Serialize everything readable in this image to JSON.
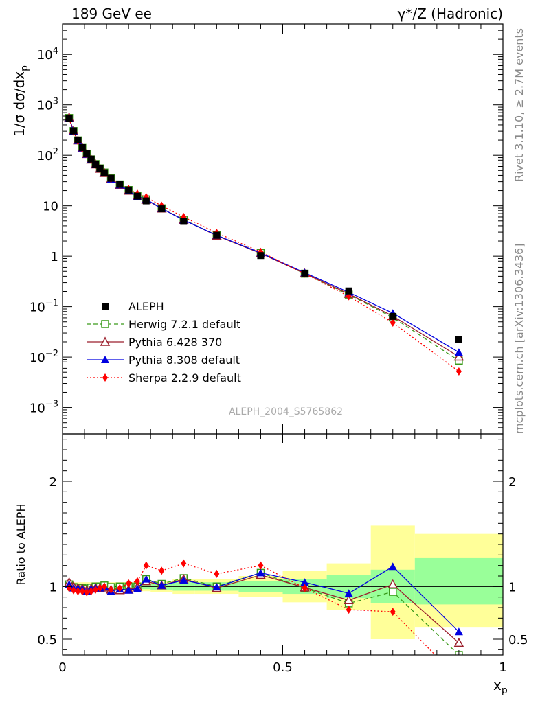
{
  "header": {
    "left_title": "189 GeV ee",
    "right_title": "γ*/Z (Hadronic)"
  },
  "side_text": {
    "rivet": "Rivet 3.1.10, ≥ 2.7M events",
    "mcplots": "mcplots.cern.ch [arXiv:1306.3436]"
  },
  "analysis_label": "ALEPH_2004_S5765862",
  "colors": {
    "data": "#000000",
    "herwig": "#3a9a1a",
    "pythia6": "#9b1f2c",
    "pythia8": "#0000e0",
    "sherpa": "#ff0000",
    "band_inner": "#99ff99",
    "band_outer": "#ffff99"
  },
  "chart_data": [
    {
      "type": "scatter",
      "panel": "main",
      "ylabel": "1/σ dσ/dx",
      "ylabel_sub": "p",
      "yscale": "log",
      "xlim": [
        0,
        1
      ],
      "ylim": [
        0.0003,
        40000
      ],
      "y_ticks": [
        {
          "v": 0.001,
          "base": "10",
          "exp": "−3"
        },
        {
          "v": 0.01,
          "base": "10",
          "exp": "−2"
        },
        {
          "v": 0.1,
          "base": "10",
          "exp": "−1"
        },
        {
          "v": 1,
          "base": "1",
          "exp": ""
        },
        {
          "v": 10,
          "base": "10",
          "exp": ""
        },
        {
          "v": 100,
          "base": "10",
          "exp": "2"
        },
        {
          "v": 1000,
          "base": "10",
          "exp": "3"
        },
        {
          "v": 10000,
          "base": "10",
          "exp": "4"
        }
      ],
      "x": [
        0.015,
        0.025,
        0.035,
        0.045,
        0.055,
        0.065,
        0.075,
        0.085,
        0.095,
        0.11,
        0.13,
        0.15,
        0.17,
        0.19,
        0.225,
        0.275,
        0.35,
        0.45,
        0.55,
        0.65,
        0.75,
        0.9
      ],
      "series": [
        {
          "key": "aleph",
          "name": "ALEPH",
          "marker": "square-filled",
          "style": "none",
          "values": [
            540,
            305,
            200,
            142,
            110,
            84,
            67,
            55,
            45,
            35,
            26.5,
            20.5,
            15.5,
            12.5,
            8.7,
            4.9,
            2.6,
            1.03,
            0.46,
            0.205,
            0.064,
            0.022
          ]
        },
        {
          "key": "herwig",
          "name": "Herwig 7.2.1 default",
          "marker": "square-open",
          "style": "dashed",
          "values": [
            550,
            303,
            198,
            140,
            108,
            83,
            67,
            55,
            45.5,
            35,
            26.5,
            20.5,
            15.5,
            13.4,
            8.9,
            5.3,
            2.6,
            1.16,
            0.45,
            0.173,
            0.061,
            0.0085
          ]
        },
        {
          "key": "pythia6",
          "name": "Pythia 6.428 370",
          "marker": "triangle-open",
          "style": "solid",
          "values": [
            560,
            305,
            197,
            139,
            106,
            82,
            66,
            54,
            44.5,
            34,
            25.5,
            19.9,
            15.4,
            13.1,
            8.8,
            5.25,
            2.55,
            1.14,
            0.455,
            0.179,
            0.065,
            0.0102
          ]
        },
        {
          "key": "pythia8",
          "name": "Pythia 8.308 default",
          "marker": "triangle-filled",
          "style": "solid",
          "values": [
            550,
            300,
            196,
            139,
            105,
            82,
            66,
            54,
            45,
            33.5,
            25.8,
            19.8,
            15.2,
            13.4,
            8.8,
            5.2,
            2.6,
            1.16,
            0.47,
            0.192,
            0.074,
            0.0124
          ]
        },
        {
          "key": "sherpa",
          "name": "Sherpa 2.2.9 default",
          "marker": "diamond-filled",
          "style": "dotted",
          "values": [
            530,
            295,
            192,
            137,
            106,
            81,
            65,
            54,
            45,
            34,
            26,
            21.5,
            17.3,
            14.8,
            10,
            6,
            2.9,
            1.22,
            0.45,
            0.16,
            0.048,
            0.0052
          ]
        }
      ]
    },
    {
      "type": "line",
      "panel": "ratio",
      "ylabel": "Ratio to ALEPH",
      "xlabel": "x",
      "xlabel_sub": "p",
      "xlim": [
        0,
        1
      ],
      "ylim": [
        0.35,
        2.45
      ],
      "x_ticks": [
        {
          "v": 0,
          "label": "0"
        },
        {
          "v": 0.5,
          "label": "0.5"
        },
        {
          "v": 1,
          "label": "1"
        }
      ],
      "y_ticks": [
        {
          "v": 0.5,
          "label": "0.5"
        },
        {
          "v": 1,
          "label": "1"
        },
        {
          "v": 2,
          "label": "2"
        }
      ],
      "bins": [
        {
          "lo": 0.01,
          "hi": 0.02,
          "inner": [
            0.98,
            1.02
          ],
          "outer": [
            0.96,
            1.04
          ]
        },
        {
          "lo": 0.02,
          "hi": 0.03,
          "inner": [
            0.98,
            1.02
          ],
          "outer": [
            0.96,
            1.04
          ]
        },
        {
          "lo": 0.03,
          "hi": 0.04,
          "inner": [
            0.98,
            1.02
          ],
          "outer": [
            0.96,
            1.04
          ]
        },
        {
          "lo": 0.04,
          "hi": 0.05,
          "inner": [
            0.98,
            1.02
          ],
          "outer": [
            0.96,
            1.04
          ]
        },
        {
          "lo": 0.05,
          "hi": 0.06,
          "inner": [
            0.98,
            1.02
          ],
          "outer": [
            0.96,
            1.04
          ]
        },
        {
          "lo": 0.06,
          "hi": 0.07,
          "inner": [
            0.98,
            1.02
          ],
          "outer": [
            0.96,
            1.04
          ]
        },
        {
          "lo": 0.07,
          "hi": 0.08,
          "inner": [
            0.98,
            1.02
          ],
          "outer": [
            0.96,
            1.04
          ]
        },
        {
          "lo": 0.08,
          "hi": 0.09,
          "inner": [
            0.98,
            1.02
          ],
          "outer": [
            0.96,
            1.04
          ]
        },
        {
          "lo": 0.09,
          "hi": 0.1,
          "inner": [
            0.98,
            1.02
          ],
          "outer": [
            0.96,
            1.04
          ]
        },
        {
          "lo": 0.1,
          "hi": 0.12,
          "inner": [
            0.98,
            1.02
          ],
          "outer": [
            0.96,
            1.04
          ]
        },
        {
          "lo": 0.12,
          "hi": 0.14,
          "inner": [
            0.98,
            1.02
          ],
          "outer": [
            0.96,
            1.04
          ]
        },
        {
          "lo": 0.14,
          "hi": 0.16,
          "inner": [
            0.98,
            1.02
          ],
          "outer": [
            0.96,
            1.04
          ]
        },
        {
          "lo": 0.16,
          "hi": 0.18,
          "inner": [
            0.98,
            1.02
          ],
          "outer": [
            0.96,
            1.04
          ]
        },
        {
          "lo": 0.18,
          "hi": 0.2,
          "inner": [
            0.975,
            1.025
          ],
          "outer": [
            0.955,
            1.045
          ]
        },
        {
          "lo": 0.2,
          "hi": 0.25,
          "inner": [
            0.97,
            1.03
          ],
          "outer": [
            0.95,
            1.05
          ]
        },
        {
          "lo": 0.25,
          "hi": 0.3,
          "inner": [
            0.96,
            1.04
          ],
          "outer": [
            0.93,
            1.07
          ]
        },
        {
          "lo": 0.3,
          "hi": 0.4,
          "inner": [
            0.96,
            1.04
          ],
          "outer": [
            0.93,
            1.07
          ]
        },
        {
          "lo": 0.4,
          "hi": 0.5,
          "inner": [
            0.95,
            1.05
          ],
          "outer": [
            0.9,
            1.1
          ]
        },
        {
          "lo": 0.5,
          "hi": 0.6,
          "inner": [
            0.93,
            1.07
          ],
          "outer": [
            0.85,
            1.15
          ]
        },
        {
          "lo": 0.6,
          "hi": 0.7,
          "inner": [
            0.89,
            1.11
          ],
          "outer": [
            0.78,
            1.22
          ]
        },
        {
          "lo": 0.7,
          "hi": 0.8,
          "inner": [
            0.84,
            1.16
          ],
          "outer": [
            0.5,
            1.58
          ]
        },
        {
          "lo": 0.8,
          "hi": 1.0,
          "inner": [
            0.83,
            1.27
          ],
          "outer": [
            0.61,
            1.5
          ]
        }
      ],
      "x": [
        0.015,
        0.025,
        0.035,
        0.045,
        0.055,
        0.065,
        0.075,
        0.085,
        0.095,
        0.11,
        0.13,
        0.15,
        0.17,
        0.19,
        0.225,
        0.275,
        0.35,
        0.45,
        0.55,
        0.65,
        0.75,
        0.9
      ],
      "series": [
        {
          "key": "herwig",
          "name": "Herwig 7.2.1 default",
          "marker": "square-open",
          "style": "dashed",
          "values": [
            1.02,
            0.995,
            0.99,
            0.985,
            0.98,
            0.99,
            1.0,
            1.0,
            1.01,
            0.995,
            1.0,
            1.0,
            1.0,
            1.07,
            1.025,
            1.08,
            1.0,
            1.13,
            0.985,
            0.84,
            0.95,
            0.35
          ]
        },
        {
          "key": "pythia6",
          "name": "Pythia 6.428 370",
          "marker": "triangle-open",
          "style": "solid",
          "values": [
            1.04,
            1.0,
            0.985,
            0.98,
            0.965,
            0.98,
            0.985,
            0.985,
            0.99,
            0.97,
            0.965,
            0.97,
            0.995,
            1.05,
            1.01,
            1.07,
            0.985,
            1.11,
            0.99,
            0.87,
            1.02,
            0.465
          ]
        },
        {
          "key": "pythia8",
          "name": "Pythia 8.308 default",
          "marker": "triangle-filled",
          "style": "solid",
          "values": [
            1.02,
            0.985,
            0.98,
            0.975,
            0.955,
            0.975,
            0.985,
            0.985,
            1.0,
            0.955,
            0.975,
            0.965,
            0.98,
            1.07,
            1.01,
            1.06,
            0.995,
            1.13,
            1.04,
            0.935,
            1.19,
            0.57
          ]
        },
        {
          "key": "sherpa",
          "name": "Sherpa 2.2.9 default",
          "marker": "diamond-filled",
          "style": "dotted",
          "values": [
            0.985,
            0.965,
            0.955,
            0.955,
            0.945,
            0.955,
            0.97,
            0.985,
            1.0,
            0.97,
            0.985,
            1.03,
            1.05,
            1.2,
            1.15,
            1.22,
            1.12,
            1.2,
            0.985,
            0.78,
            0.76,
            0.12
          ]
        }
      ]
    }
  ]
}
